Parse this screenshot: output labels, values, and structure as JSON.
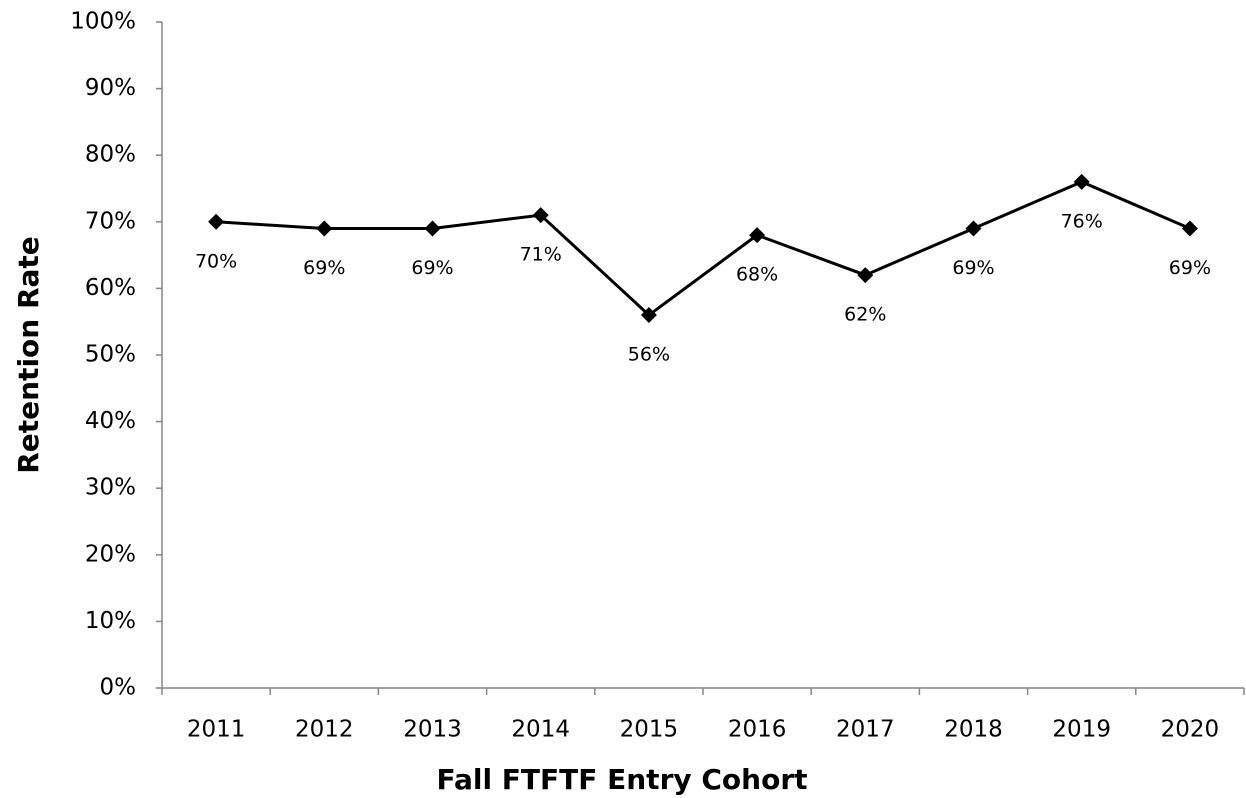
{
  "chart_data": {
    "type": "line",
    "x_label": "Fall FTFTF Entry Cohort",
    "y_label": "Retention Rate",
    "categories": [
      "2011",
      "2012",
      "2013",
      "2014",
      "2015",
      "2016",
      "2017",
      "2018",
      "2019",
      "2020"
    ],
    "series": [
      {
        "color": "#000000",
        "values": [
          70,
          69,
          69,
          71,
          56,
          68,
          62,
          69,
          76,
          69
        ],
        "value_labels": [
          "70%",
          "69%",
          "69%",
          "71%",
          "56%",
          "68%",
          "62%",
          "69%",
          "76%",
          "69%"
        ]
      }
    ],
    "ylim": [
      0,
      100
    ],
    "yticks": [
      {
        "value": 0,
        "label": "0%"
      },
      {
        "value": 10,
        "label": "10%"
      },
      {
        "value": 20,
        "label": "20%"
      },
      {
        "value": 30,
        "label": "30%"
      },
      {
        "value": 40,
        "label": "40%"
      },
      {
        "value": 50,
        "label": "50%"
      },
      {
        "value": 60,
        "label": "60%"
      },
      {
        "value": 70,
        "label": "70%"
      },
      {
        "value": 80,
        "label": "80%"
      },
      {
        "value": 90,
        "label": "90%"
      },
      {
        "value": 100,
        "label": "100%"
      }
    ],
    "grid": false,
    "marker": "diamond"
  }
}
